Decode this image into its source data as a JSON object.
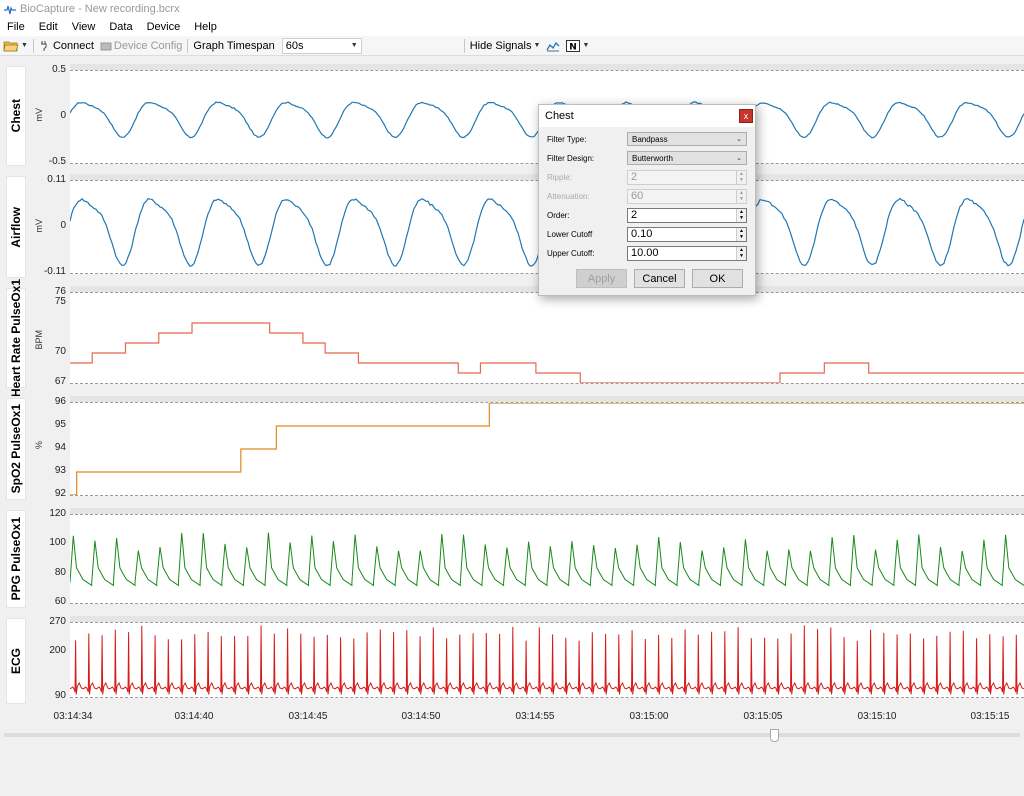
{
  "window": {
    "title": "BioCapture - New recording.bcrx"
  },
  "menu": [
    "File",
    "Edit",
    "View",
    "Data",
    "Device",
    "Help"
  ],
  "toolbar": {
    "connect_label": "Connect",
    "device_config_label": "Device Config",
    "timespan_label": "Graph Timespan",
    "timespan_value": "60s",
    "hide_signals_label": "Hide Signals"
  },
  "panels": [
    {
      "name": "Chest",
      "unit": "mV",
      "ticks": [
        "0.5",
        "0",
        "-0.5"
      ],
      "color": "#1f77b4"
    },
    {
      "name": "Airflow",
      "unit": "mV",
      "ticks": [
        "0.11",
        "0",
        "-0.11"
      ],
      "color": "#1f77b4"
    },
    {
      "name": "Heart Rate PulseOx1",
      "unit": "BPM",
      "ticks": [
        "76",
        "75",
        "70",
        "67"
      ],
      "color": "#e8674f"
    },
    {
      "name": "SpO2 PulseOx1",
      "unit": "%",
      "ticks": [
        "96",
        "95",
        "94",
        "93",
        "92"
      ],
      "color": "#e08a1e"
    },
    {
      "name": "PPG PulseOx1",
      "unit": "",
      "ticks": [
        "120",
        "100",
        "80",
        "60"
      ],
      "color": "#1a8a1a"
    },
    {
      "name": "ECG",
      "unit": "",
      "ticks": [
        "270",
        "200",
        "90"
      ],
      "color": "#d61a1a"
    }
  ],
  "xaxis": {
    "ticks": [
      "03:14:34",
      "03:14:40",
      "03:14:45",
      "03:14:50",
      "03:14:55",
      "03:15:00",
      "03:15:05",
      "03:15:10",
      "03:15:15"
    ]
  },
  "chart_data": [
    {
      "type": "line",
      "title": "Chest",
      "ylabel": "mV",
      "ylim": [
        -0.5,
        0.5
      ],
      "xlabel": "",
      "x_range": [
        "03:14:34",
        "03:15:17"
      ],
      "series": [
        {
          "name": "Chest",
          "periodic_amplitude": 0.18,
          "cycles": 14
        }
      ]
    },
    {
      "type": "line",
      "title": "Airflow",
      "ylabel": "mV",
      "ylim": [
        -0.11,
        0.11
      ],
      "series": [
        {
          "name": "Airflow",
          "periodic_amplitude": 0.075,
          "cycles": 14
        }
      ]
    },
    {
      "type": "line",
      "title": "Heart Rate PulseOx1",
      "ylabel": "BPM",
      "ylim": [
        67,
        76
      ],
      "series": [
        {
          "name": "Heart Rate PulseOx1",
          "steps_t": [
            34,
            35,
            36.5,
            38,
            39.5,
            43,
            44.5,
            45.5,
            47,
            51.5,
            52.5,
            55,
            57,
            64,
            66,
            68,
            70,
            73,
            74,
            77
          ],
          "steps_v": [
            69,
            70,
            71,
            72,
            73,
            72,
            71,
            70,
            69,
            68,
            69,
            68,
            67,
            67,
            68,
            69,
            68,
            68,
            68,
            68
          ]
        }
      ]
    },
    {
      "type": "line",
      "title": "SpO2 PulseOx1",
      "ylabel": "%",
      "ylim": [
        92,
        96
      ],
      "series": [
        {
          "name": "SpO2 PulseOx1",
          "steps_t": [
            34,
            34.3,
            39.5,
            41.7,
            43.3,
            52.9,
            77
          ],
          "steps_v": [
            92,
            93,
            93,
            94,
            95,
            96,
            96
          ]
        }
      ]
    },
    {
      "type": "line",
      "title": "PPG PulseOx1",
      "ylabel": "",
      "ylim": [
        60,
        120
      ],
      "series": [
        {
          "name": "PPG PulseOx1",
          "peak_min": 95,
          "peak_max": 108,
          "trough": 72,
          "beats": 44
        }
      ]
    },
    {
      "type": "line",
      "title": "ECG",
      "ylabel": "",
      "ylim": [
        90,
        270
      ],
      "series": [
        {
          "name": "ECG",
          "r_peak_min": 225,
          "r_peak_max": 265,
          "baseline": 110,
          "beats": 72
        }
      ]
    }
  ],
  "dialog": {
    "title": "Chest",
    "close_glyph": "x",
    "filter_type_label": "Filter Type:",
    "filter_type_value": "Bandpass",
    "filter_design_label": "Filter Design:",
    "filter_design_value": "Butterworth",
    "ripple_label": "Ripple:",
    "ripple_value": "2",
    "attenuation_label": "Attenuation:",
    "attenuation_value": "60",
    "order_label": "Order:",
    "order_value": "2",
    "lower_cutoff_label": "Lower Cutoff",
    "lower_cutoff_value": "0.10",
    "upper_cutoff_label": "Upper Cutoff:",
    "upper_cutoff_value": "10.00",
    "apply_label": "Apply",
    "cancel_label": "Cancel",
    "ok_label": "OK"
  }
}
